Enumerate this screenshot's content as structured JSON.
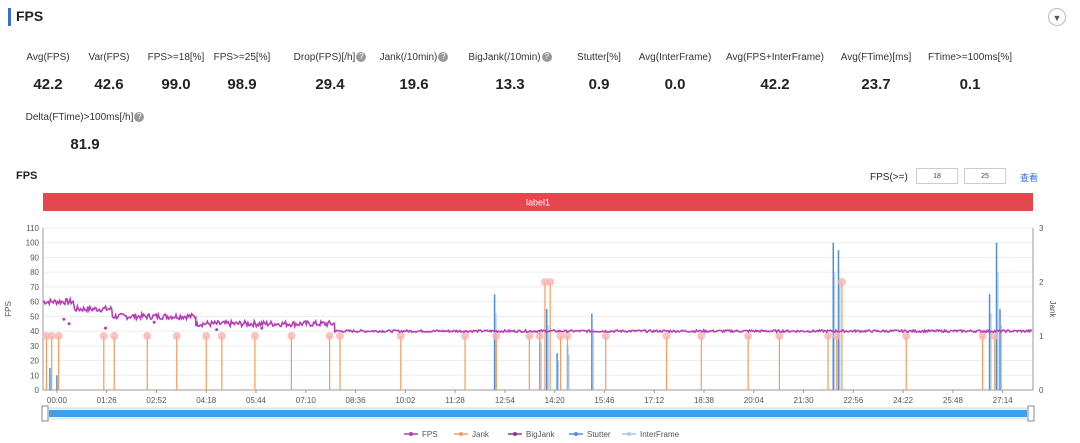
{
  "section": {
    "title": "FPS"
  },
  "metrics_row1": [
    {
      "label": "Avg(FPS)",
      "value": "42.2",
      "help": false
    },
    {
      "label": "Var(FPS)",
      "value": "42.6",
      "help": false
    },
    {
      "label": "FPS>=18[%]",
      "value": "99.0",
      "help": false
    },
    {
      "label": "FPS>=25[%]",
      "value": "98.9",
      "help": false
    },
    {
      "label": "Drop(FPS)[/h]",
      "value": "29.4",
      "help": true
    },
    {
      "label": "Jank(/10min)",
      "value": "19.6",
      "help": true
    },
    {
      "label": "BigJank(/10min)",
      "value": "13.3",
      "help": true
    },
    {
      "label": "Stutter[%]",
      "value": "0.9",
      "help": false
    },
    {
      "label": "Avg(InterFrame)",
      "value": "0.0",
      "help": false
    },
    {
      "label": "Avg(FPS+InterFrame)",
      "value": "42.2",
      "help": false
    },
    {
      "label": "Avg(FTime)[ms]",
      "value": "23.7",
      "help": false
    },
    {
      "label": "FTime>=100ms[%]",
      "value": "0.1",
      "help": false
    }
  ],
  "metrics_row2": [
    {
      "label": "Delta(FTime)>100ms[/h]",
      "value": "81.9",
      "help": true
    }
  ],
  "chart_header": {
    "title": "FPS",
    "threshold_label": "FPS(>=)",
    "threshold1": "18",
    "threshold2": "25",
    "apply_label": "查看"
  },
  "chart_data": {
    "type": "line",
    "band_label": "label1",
    "ylabel": "FPS",
    "y2label": "Jank",
    "ylim": [
      0,
      110
    ],
    "yticks": [
      0,
      10,
      20,
      30,
      40,
      50,
      60,
      70,
      80,
      90,
      100,
      110
    ],
    "y2lim": [
      0,
      3
    ],
    "y2ticks": [
      0,
      1,
      2,
      3
    ],
    "x_ticks": [
      "00:00",
      "01:26",
      "02:52",
      "04:18",
      "05:44",
      "07:10",
      "08:36",
      "10:02",
      "11:28",
      "12:54",
      "14:20",
      "15:46",
      "17:12",
      "18:38",
      "20:04",
      "21:30",
      "22:56",
      "24:22",
      "25:48",
      "27:14"
    ],
    "fps_segments": [
      {
        "from": 0,
        "to": 0.9,
        "value": 60
      },
      {
        "from": 0.9,
        "to": 2.0,
        "value": 55
      },
      {
        "from": 2.0,
        "to": 4.4,
        "value": 50
      },
      {
        "from": 4.4,
        "to": 8.4,
        "value": 45
      },
      {
        "from": 8.4,
        "to": 28.5,
        "value": 40
      }
    ],
    "jank_x": [
      0.1,
      0.25,
      0.45,
      1.75,
      2.05,
      3.0,
      3.85,
      4.7,
      5.15,
      6.1,
      7.15,
      8.25,
      8.55,
      10.3,
      12.15,
      13.05,
      14.0,
      14.3,
      14.45,
      14.6,
      14.9,
      15.1,
      16.2,
      17.95,
      18.95,
      20.3,
      21.2,
      22.6,
      22.85,
      23.0,
      24.85,
      27.05,
      27.4
    ],
    "jank_values": [
      1,
      1,
      1,
      1,
      1,
      1,
      1,
      1,
      1,
      1,
      1,
      1,
      1,
      1,
      1,
      1,
      1,
      1,
      2,
      2,
      1,
      1,
      1,
      1,
      1,
      1,
      1,
      1,
      1,
      2,
      1,
      1,
      1
    ],
    "stutter_spikes": [
      {
        "x": 0.2,
        "value": 15
      },
      {
        "x": 0.4,
        "value": 10
      },
      {
        "x": 13.0,
        "value": 65
      },
      {
        "x": 14.3,
        "value": 40
      },
      {
        "x": 14.5,
        "value": 55
      },
      {
        "x": 14.8,
        "value": 25
      },
      {
        "x": 15.1,
        "value": 30
      },
      {
        "x": 15.8,
        "value": 52
      },
      {
        "x": 22.75,
        "value": 100
      },
      {
        "x": 22.9,
        "value": 95
      },
      {
        "x": 27.25,
        "value": 65
      },
      {
        "x": 27.45,
        "value": 100
      },
      {
        "x": 27.55,
        "value": 55
      }
    ],
    "legend": [
      "FPS",
      "Jank",
      "BigJank",
      "Stutter",
      "InterFrame"
    ],
    "colors": {
      "fps": "#b63db6",
      "jank": "#f39c5b",
      "bigjank": "#8a3a8a",
      "stutter": "#4f8fd9",
      "interframe": "#a9c9ef",
      "band": "#e5474f",
      "slider": "#3fa0e8"
    }
  }
}
